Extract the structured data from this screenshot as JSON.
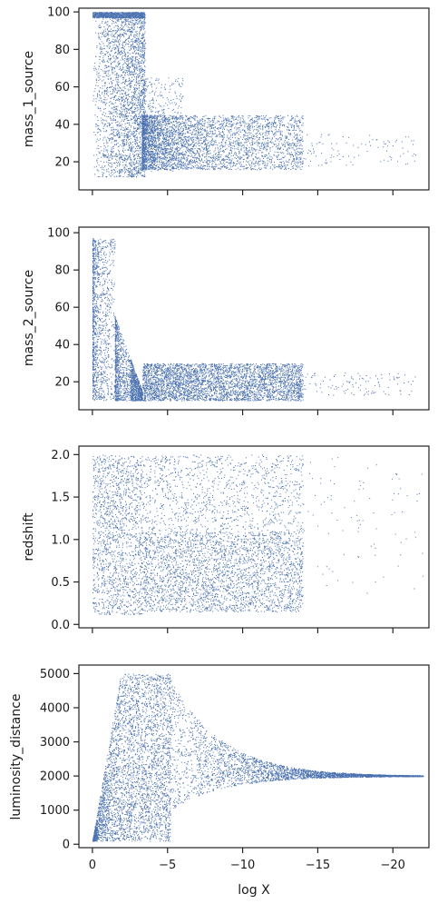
{
  "chart_data": [
    {
      "type": "scatter",
      "ylabel": "mass_1_source",
      "xlabel": "",
      "xlim": [
        0.9,
        -22.4
      ],
      "ylim": [
        5,
        102
      ],
      "xticks": [
        0,
        -5,
        -10,
        -15,
        -20
      ],
      "yticks": [
        20,
        40,
        60,
        80,
        100
      ],
      "ytick_labels": [
        "20",
        "40",
        "60",
        "80",
        "100"
      ],
      "color": "#4c72b0",
      "regions": [
        {
          "x": [
            0,
            -3.5
          ],
          "y": [
            12,
            100
          ],
          "n": 2600,
          "skew": 0.6
        },
        {
          "x": [
            0,
            -3.5
          ],
          "y": [
            97,
            100
          ],
          "n": 900,
          "skew": 1
        },
        {
          "x": [
            -3.3,
            -14
          ],
          "y": [
            16,
            45
          ],
          "n": 3800,
          "skew": 1.8
        },
        {
          "x": [
            -3.3,
            -6
          ],
          "y": [
            15,
            65
          ],
          "n": 450,
          "skew": 1.5
        },
        {
          "x": [
            -13,
            -21.5
          ],
          "y": [
            18,
            35
          ],
          "n": 130,
          "skew": 1.5
        }
      ]
    },
    {
      "type": "scatter",
      "ylabel": "mass_2_source",
      "xlabel": "",
      "xlim": [
        0.9,
        -22.4
      ],
      "ylim": [
        5,
        103
      ],
      "xticks": [
        0,
        -5,
        -10,
        -15,
        -20
      ],
      "yticks": [
        20,
        40,
        60,
        80,
        100
      ],
      "ytick_labels": [
        "20",
        "40",
        "60",
        "80",
        "100"
      ],
      "color": "#4c72b0",
      "regions": [
        {
          "x": [
            0,
            -1.8
          ],
          "y": [
            10,
            97
          ],
          "n": 1300,
          "skew": 2.2
        },
        {
          "x": [
            -1.5,
            -3.3
          ],
          "y": [
            10,
            55
          ],
          "n": 900,
          "skew": 2.2
        },
        {
          "x": [
            -2.5,
            -14
          ],
          "y": [
            10,
            30
          ],
          "n": 4200,
          "skew": 1.2
        },
        {
          "x": [
            -13,
            -21.5
          ],
          "y": [
            13,
            25
          ],
          "n": 130,
          "skew": 1
        }
      ]
    },
    {
      "type": "scatter",
      "ylabel": "redshift",
      "xlabel": "",
      "xlim": [
        0.9,
        -22.4
      ],
      "ylim": [
        -0.04,
        2.1
      ],
      "xticks": [
        0,
        -5,
        -10,
        -15,
        -20
      ],
      "yticks": [
        0.0,
        0.5,
        1.0,
        1.5,
        2.0
      ],
      "ytick_labels": [
        "0.0",
        "0.5",
        "1.0",
        "1.5",
        "2.0"
      ],
      "color": "#4c72b0",
      "regions": [
        {
          "x": [
            0,
            -3.3
          ],
          "y": [
            0.12,
            2.0
          ],
          "n": 1500,
          "skew": 1
        },
        {
          "x": [
            -3.3,
            -14
          ],
          "y": [
            0.15,
            2.0
          ],
          "n": 2200,
          "skew": 1
        },
        {
          "x": [
            -3.3,
            -14
          ],
          "y": [
            0.15,
            1.1
          ],
          "n": 1700,
          "skew": 1
        },
        {
          "x": [
            -14,
            -22
          ],
          "y": [
            0.3,
            2.0
          ],
          "n": 90,
          "skew": 1
        }
      ]
    },
    {
      "type": "scatter",
      "ylabel": "luminosity_distance",
      "xlabel": "log X",
      "xlim": [
        0.9,
        -22.4
      ],
      "ylim": [
        -100,
        5250
      ],
      "xticks": [
        0,
        -5,
        -10,
        -15,
        -20
      ],
      "xtick_labels": [
        "0",
        "−5",
        "−10",
        "−15",
        "−20"
      ],
      "yticks": [
        0,
        1000,
        2000,
        3000,
        4000,
        5000
      ],
      "ytick_labels": [
        "0",
        "1000",
        "2000",
        "3000",
        "4000",
        "5000"
      ],
      "color": "#4c72b0",
      "regions": [
        {
          "x": [
            0,
            -5.2
          ],
          "y": [
            100,
            5000
          ],
          "n": 3500,
          "skew": 1
        },
        {
          "x": [
            -5,
            -22
          ],
          "y": [
            950,
            5000
          ],
          "n": 3200,
          "skew": 1
        }
      ]
    }
  ]
}
